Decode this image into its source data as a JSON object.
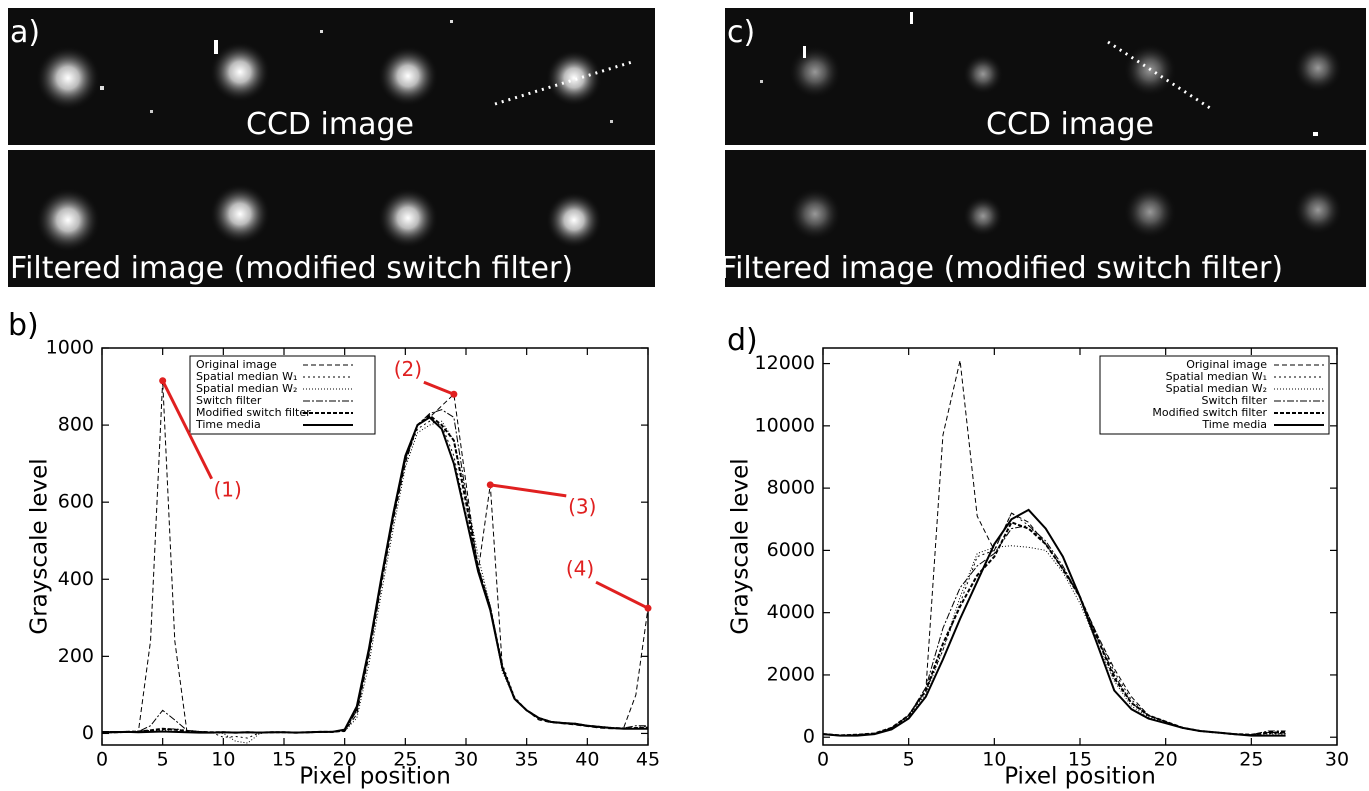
{
  "panels": [
    {
      "label": "a)",
      "top_caption": "CCD image",
      "bottom_caption": "Filtered image (modified switch filter)"
    },
    {
      "label": "c)",
      "top_caption": "CCD image",
      "bottom_caption": "Filtered image (modified switch filter)"
    }
  ],
  "chart_data": [
    {
      "type": "line",
      "label": "b)",
      "xlabel": "Pixel position",
      "ylabel": "Grayscale level",
      "xlim": [
        0,
        45
      ],
      "ylim": [
        -30,
        1000
      ],
      "xticks": [
        0,
        5,
        10,
        15,
        20,
        25,
        30,
        35,
        40,
        45
      ],
      "yticks": [
        0,
        200,
        400,
        600,
        800,
        1000
      ],
      "legend": "top-center",
      "x": [
        0,
        1,
        2,
        3,
        4,
        5,
        6,
        7,
        8,
        9,
        10,
        11,
        12,
        13,
        14,
        15,
        16,
        17,
        18,
        19,
        20,
        21,
        22,
        23,
        24,
        25,
        26,
        27,
        28,
        29,
        30,
        31,
        32,
        33,
        34,
        35,
        36,
        37,
        38,
        39,
        40,
        41,
        42,
        43,
        44,
        45
      ],
      "series": [
        {
          "name": "Original image",
          "color": "#000000",
          "dash": "5 3",
          "width": 1,
          "values": [
            5,
            5,
            5,
            5,
            240,
            915,
            240,
            5,
            5,
            3,
            2,
            3,
            2,
            3,
            2,
            3,
            3,
            2,
            3,
            4,
            5,
            50,
            200,
            380,
            550,
            700,
            800,
            820,
            850,
            880,
            650,
            420,
            645,
            170,
            90,
            60,
            35,
            28,
            25,
            22,
            18,
            14,
            12,
            15,
            100,
            325
          ]
        },
        {
          "name": "Spatial median W₁",
          "color": "#000000",
          "dash": "2 3",
          "width": 1,
          "values": [
            5,
            5,
            5,
            6,
            8,
            10,
            12,
            8,
            5,
            3,
            -10,
            -8,
            -12,
            2,
            3,
            3,
            2,
            3,
            4,
            4,
            8,
            60,
            210,
            390,
            560,
            710,
            790,
            810,
            800,
            720,
            570,
            430,
            330,
            180,
            95,
            60,
            40,
            30,
            27,
            24,
            20,
            16,
            13,
            12,
            14,
            20
          ]
        },
        {
          "name": "Spatial median W₂",
          "color": "#000000",
          "dash": "1 2",
          "width": 1,
          "values": [
            5,
            5,
            5,
            5,
            6,
            8,
            10,
            8,
            5,
            3,
            0,
            -20,
            -25,
            0,
            3,
            3,
            2,
            3,
            4,
            4,
            6,
            40,
            180,
            360,
            530,
            690,
            780,
            800,
            810,
            760,
            620,
            460,
            330,
            160,
            90,
            60,
            40,
            30,
            27,
            24,
            20,
            16,
            13,
            12,
            12,
            14
          ]
        },
        {
          "name": "Switch filter",
          "color": "#000000",
          "dash": "7 2 2 2",
          "width": 1,
          "values": [
            5,
            5,
            5,
            5,
            20,
            60,
            35,
            8,
            5,
            3,
            2,
            3,
            2,
            3,
            2,
            3,
            3,
            2,
            3,
            4,
            6,
            60,
            210,
            390,
            560,
            710,
            800,
            830,
            840,
            820,
            620,
            430,
            330,
            170,
            90,
            60,
            38,
            29,
            26,
            23,
            19,
            15,
            13,
            14,
            20,
            20
          ]
        },
        {
          "name": "Modified switch filter",
          "color": "#000000",
          "dash": "4 2",
          "width": 2,
          "values": [
            3,
            3,
            4,
            5,
            8,
            12,
            10,
            6,
            4,
            3,
            3,
            2,
            3,
            2,
            3,
            3,
            2,
            3,
            4,
            4,
            8,
            65,
            215,
            395,
            565,
            715,
            800,
            825,
            800,
            760,
            600,
            430,
            325,
            170,
            90,
            60,
            40,
            30,
            27,
            25,
            20,
            17,
            14,
            13,
            14,
            15
          ]
        },
        {
          "name": "Time media",
          "color": "#000000",
          "dash": "",
          "width": 2,
          "values": [
            3,
            3,
            4,
            3,
            4,
            5,
            4,
            3,
            2,
            2,
            3,
            2,
            3,
            2,
            3,
            3,
            2,
            3,
            4,
            4,
            10,
            70,
            220,
            400,
            570,
            720,
            800,
            820,
            790,
            700,
            560,
            420,
            320,
            170,
            90,
            60,
            40,
            30,
            27,
            25,
            20,
            17,
            14,
            12,
            12,
            12
          ]
        }
      ],
      "annotations": [
        {
          "text": "(1)",
          "x": 5,
          "y": 915,
          "color": "#e02020"
        },
        {
          "text": "(2)",
          "x": 29,
          "y": 880,
          "color": "#e02020"
        },
        {
          "text": "(3)",
          "x": 32,
          "y": 645,
          "color": "#e02020"
        },
        {
          "text": "(4)",
          "x": 45,
          "y": 325,
          "color": "#e02020"
        }
      ]
    },
    {
      "type": "line",
      "label": "d)",
      "xlabel": "Pixel position",
      "ylabel": "Grayscale level",
      "xlim": [
        0,
        30
      ],
      "ylim": [
        -250,
        12500
      ],
      "xticks": [
        0,
        5,
        10,
        15,
        20,
        25,
        30
      ],
      "yticks": [
        0,
        2000,
        4000,
        6000,
        8000,
        10000,
        12000
      ],
      "legend": "top-right",
      "x": [
        0,
        1,
        2,
        3,
        4,
        5,
        6,
        7,
        8,
        9,
        10,
        11,
        12,
        13,
        14,
        15,
        16,
        17,
        18,
        19,
        20,
        21,
        22,
        23,
        24,
        25,
        26,
        27
      ],
      "series": [
        {
          "name": "Original image",
          "color": "#000000",
          "dash": "5 3",
          "width": 1,
          "values": [
            100,
            50,
            80,
            100,
            300,
            700,
            1500,
            9700,
            12100,
            7100,
            6000,
            7200,
            6900,
            6200,
            5400,
            4500,
            3300,
            2200,
            1300,
            700,
            500,
            300,
            200,
            150,
            100,
            80,
            150,
            150
          ]
        },
        {
          "name": "Spatial median W₁",
          "color": "#000000",
          "dash": "2 3",
          "width": 1,
          "values": [
            100,
            60,
            80,
            120,
            300,
            700,
            1500,
            2800,
            4300,
            5800,
            6000,
            7200,
            6800,
            6200,
            5400,
            4500,
            3300,
            2100,
            1200,
            700,
            500,
            300,
            200,
            150,
            100,
            80,
            120,
            120
          ]
        },
        {
          "name": "Spatial median W₂",
          "color": "#000000",
          "dash": "1 2",
          "width": 1,
          "values": [
            100,
            60,
            80,
            120,
            300,
            650,
            1400,
            2800,
            4500,
            5900,
            6100,
            6150,
            6100,
            6000,
            5300,
            4300,
            3000,
            1800,
            1000,
            650,
            450,
            300,
            200,
            150,
            100,
            80,
            100,
            100
          ]
        },
        {
          "name": "Switch filter",
          "color": "#000000",
          "dash": "7 2 2 2",
          "width": 1,
          "values": [
            100,
            60,
            80,
            120,
            300,
            700,
            1600,
            3500,
            4800,
            5500,
            5900,
            6700,
            6800,
            6300,
            5500,
            4500,
            3200,
            2000,
            1100,
            700,
            500,
            300,
            200,
            150,
            100,
            80,
            200,
            200
          ]
        },
        {
          "name": "Modified switch filter",
          "color": "#000000",
          "dash": "4 2",
          "width": 2,
          "values": [
            100,
            60,
            80,
            120,
            300,
            700,
            1500,
            3000,
            4200,
            5200,
            5800,
            6900,
            6700,
            6200,
            5400,
            4500,
            3200,
            1900,
            1100,
            700,
            500,
            300,
            200,
            150,
            100,
            80,
            150,
            150
          ]
        },
        {
          "name": "Time media",
          "color": "#000000",
          "dash": "",
          "width": 2,
          "values": [
            100,
            50,
            50,
            100,
            250,
            600,
            1300,
            2500,
            3800,
            5000,
            6200,
            7000,
            7300,
            6700,
            5800,
            4500,
            3000,
            1500,
            900,
            600,
            450,
            300,
            200,
            150,
            100,
            50,
            50,
            50
          ]
        }
      ]
    }
  ]
}
